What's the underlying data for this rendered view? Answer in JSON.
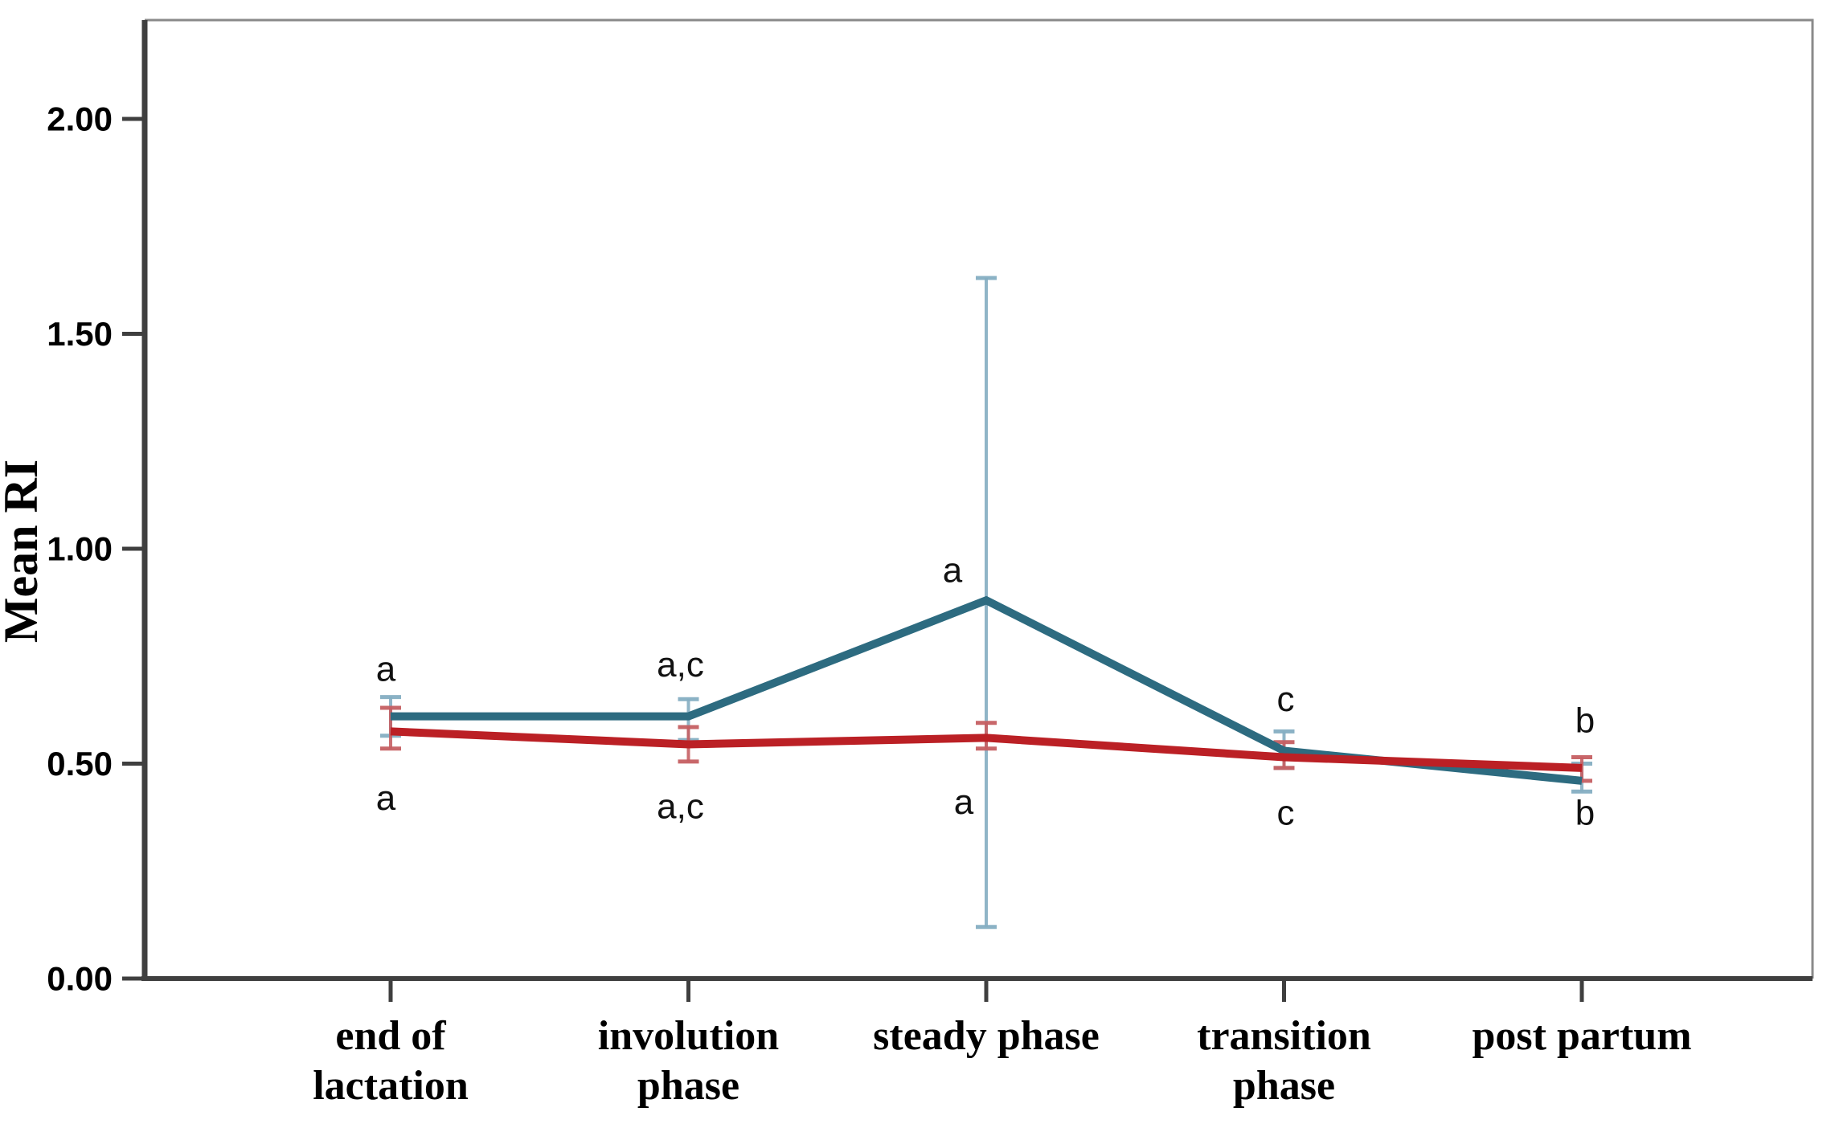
{
  "chart_data": {
    "type": "line",
    "title": "",
    "ylabel": "Mean RI",
    "xlabel": "",
    "ylim": [
      0,
      2.23
    ],
    "grid": false,
    "legend": "none",
    "yticks": [
      {
        "value": 2.0,
        "label": "2.00"
      },
      {
        "value": 1.5,
        "label": "1.50"
      },
      {
        "value": 1.0,
        "label": "1.00"
      },
      {
        "value": 0.5,
        "label": "0.50"
      },
      {
        "value": 0.0,
        "label": "0.00"
      }
    ],
    "categories": [
      {
        "label": "end of lactation",
        "lines": [
          "end of",
          "lactation"
        ]
      },
      {
        "label": "involution phase",
        "lines": [
          "involution",
          "phase"
        ]
      },
      {
        "label": "steady phase",
        "lines": [
          "steady phase"
        ]
      },
      {
        "label": "transition phase",
        "lines": [
          "transition",
          "phase"
        ]
      },
      {
        "label": "post partum",
        "lines": [
          "post partum"
        ]
      }
    ],
    "series": [
      {
        "name": "teal-series",
        "color": "#2d6b80",
        "error_color": "#85aec2",
        "values": [
          0.61,
          0.61,
          0.88,
          0.53,
          0.46
        ],
        "error_low": [
          0.565,
          0.555,
          0.12,
          0.49,
          0.435
        ],
        "error_high": [
          0.655,
          0.65,
          1.63,
          0.575,
          0.5
        ]
      },
      {
        "name": "red-series",
        "color": "#bb2025",
        "error_color": "#c65f63",
        "values": [
          0.575,
          0.545,
          0.56,
          0.515,
          0.49
        ],
        "error_low": [
          0.535,
          0.505,
          0.535,
          0.49,
          0.46
        ],
        "error_high": [
          0.63,
          0.585,
          0.595,
          0.55,
          0.515
        ]
      }
    ],
    "annotations": [
      {
        "category": 0,
        "text": "a",
        "value": 0.72,
        "dx": -6
      },
      {
        "category": 0,
        "text": "a",
        "value": 0.42,
        "dx": -6
      },
      {
        "category": 1,
        "text": "a,c",
        "value": 0.73,
        "dx": -10
      },
      {
        "category": 1,
        "text": "a,c",
        "value": 0.4,
        "dx": -10
      },
      {
        "category": 2,
        "text": "a",
        "value": 0.95,
        "dx": -42
      },
      {
        "category": 2,
        "text": "a",
        "value": 0.41,
        "dx": -28
      },
      {
        "category": 3,
        "text": "c",
        "value": 0.65,
        "dx": 2
      },
      {
        "category": 3,
        "text": "c",
        "value": 0.385,
        "dx": 2
      },
      {
        "category": 4,
        "text": "b",
        "value": 0.6,
        "dx": 4
      },
      {
        "category": 4,
        "text": "b",
        "value": 0.385,
        "dx": 4
      }
    ],
    "colors": {
      "axis": "#3f3f3f",
      "frame": "#8a8a8a",
      "text": "#000000",
      "background": "#ffffff"
    }
  }
}
